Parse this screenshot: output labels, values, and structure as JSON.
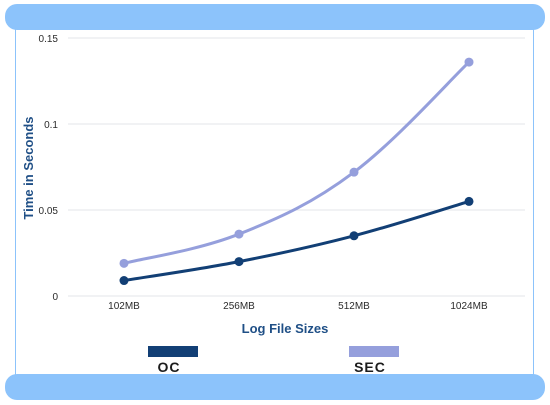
{
  "chart_data": {
    "type": "line",
    "categories": [
      "102MB",
      "256MB",
      "512MB",
      "1024MB"
    ],
    "series": [
      {
        "name": "OC",
        "values": [
          0.009,
          0.02,
          0.035,
          0.055
        ],
        "color": "#123f75"
      },
      {
        "name": "SEC",
        "values": [
          0.019,
          0.036,
          0.072,
          0.136
        ],
        "color": "#959fdc"
      }
    ],
    "xlabel": "Log File Sizes",
    "ylabel": "Time in Seconds",
    "ylim": [
      0,
      0.15
    ],
    "yticks": [
      "0",
      "0.05",
      "0.1",
      "0.15"
    ],
    "grid": true,
    "legend_placement": "bottom"
  },
  "colors": {
    "frame": "#8cc3fb",
    "grid": "#e3e6ea"
  }
}
